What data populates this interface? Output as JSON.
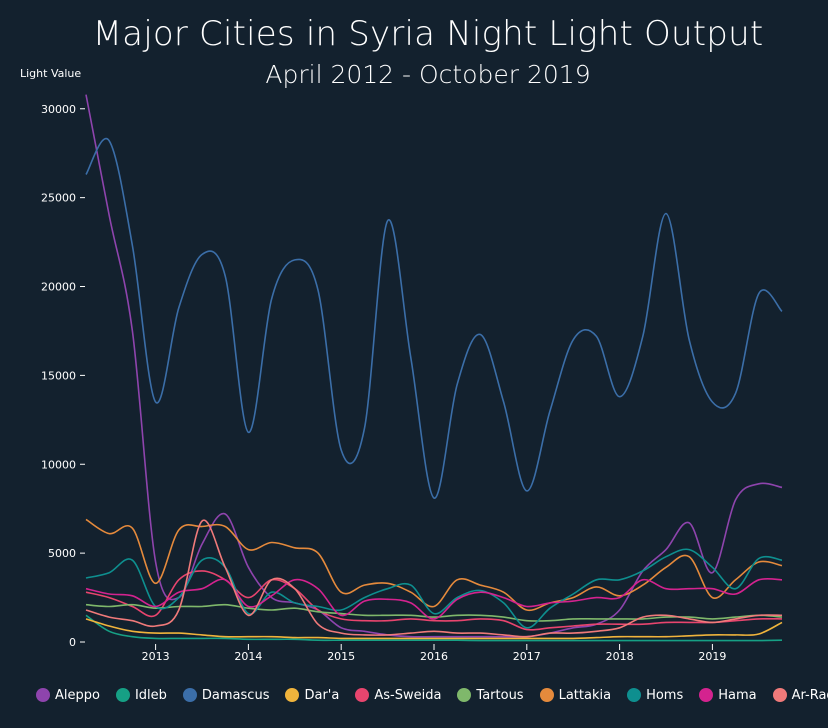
{
  "chart_data": {
    "type": "line",
    "title": "Major Cities in Syria Night Light Output",
    "subtitle": "April 2012 - October 2019",
    "ylabel": "Light Value",
    "xlabel": "",
    "ylim": [
      0,
      31000
    ],
    "xlim": [
      "2012-04",
      "2019-10"
    ],
    "yticks": [
      0,
      5000,
      10000,
      15000,
      20000,
      25000,
      30000
    ],
    "yticklabels": [
      "0",
      "5000",
      "10000",
      "15000",
      "20000",
      "25000",
      "30000"
    ],
    "xticks": [
      "2013-01",
      "2014-01",
      "2015-01",
      "2016-01",
      "2017-01",
      "2018-01",
      "2019-01"
    ],
    "xticklabels": [
      "2013",
      "2014",
      "2015",
      "2016",
      "2017",
      "2018",
      "2019"
    ],
    "legend_position": "bottom",
    "grid": false,
    "x": [
      "2012-04",
      "2012-07",
      "2012-10",
      "2013-01",
      "2013-04",
      "2013-07",
      "2013-10",
      "2014-01",
      "2014-04",
      "2014-07",
      "2014-10",
      "2015-01",
      "2015-04",
      "2015-07",
      "2015-10",
      "2016-01",
      "2016-04",
      "2016-07",
      "2016-10",
      "2017-01",
      "2017-04",
      "2017-07",
      "2017-10",
      "2018-01",
      "2018-04",
      "2018-07",
      "2018-10",
      "2019-01",
      "2019-04",
      "2019-07",
      "2019-10"
    ],
    "series": [
      {
        "name": "Aleppo",
        "color": "#8e44ad",
        "values": [
          30800,
          24000,
          17500,
          4500,
          2500,
          5500,
          7200,
          4200,
          2500,
          2200,
          1800,
          800,
          600,
          400,
          300,
          300,
          300,
          300,
          300,
          300,
          500,
          800,
          1000,
          1800,
          4000,
          5200,
          6700,
          3900,
          8000,
          8900,
          8700
        ]
      },
      {
        "name": "Idleb",
        "color": "#16a085",
        "values": [
          1500,
          600,
          300,
          200,
          200,
          200,
          200,
          150,
          150,
          150,
          100,
          100,
          100,
          100,
          100,
          100,
          100,
          80,
          80,
          80,
          80,
          80,
          80,
          80,
          80,
          80,
          80,
          80,
          80,
          80,
          100
        ]
      },
      {
        "name": "Damascus",
        "color": "#3b6ea8",
        "values": [
          26300,
          28200,
          22300,
          13500,
          18800,
          21800,
          20600,
          11800,
          19300,
          21500,
          19800,
          10800,
          12000,
          23700,
          16000,
          8100,
          14500,
          17300,
          13500,
          8500,
          13000,
          17000,
          17200,
          13800,
          17200,
          24100,
          17000,
          13500,
          14000,
          19600,
          18600
        ]
      },
      {
        "name": "Dar'a",
        "color": "#f0b43c",
        "values": [
          1300,
          900,
          600,
          500,
          500,
          400,
          300,
          300,
          300,
          250,
          250,
          200,
          200,
          200,
          200,
          200,
          200,
          200,
          200,
          200,
          200,
          200,
          250,
          300,
          300,
          300,
          350,
          400,
          400,
          450,
          1100
        ]
      },
      {
        "name": "As-Sweida",
        "color": "#e8456e",
        "values": [
          2800,
          2500,
          2000,
          1500,
          3500,
          4000,
          3500,
          2500,
          3500,
          3000,
          1800,
          1300,
          1200,
          1200,
          1300,
          1200,
          1200,
          1300,
          1200,
          700,
          800,
          900,
          1000,
          1000,
          1000,
          1100,
          1100,
          1100,
          1200,
          1300,
          1300
        ]
      },
      {
        "name": "Tartous",
        "color": "#7fb86b",
        "values": [
          2100,
          2000,
          2100,
          1900,
          2000,
          2000,
          2100,
          1900,
          1800,
          1900,
          1700,
          1600,
          1500,
          1500,
          1500,
          1400,
          1500,
          1500,
          1400,
          1200,
          1200,
          1300,
          1300,
          1300,
          1300,
          1400,
          1400,
          1300,
          1400,
          1500,
          1400
        ]
      },
      {
        "name": "Lattakia",
        "color": "#e58a3c",
        "values": [
          6900,
          6100,
          6400,
          3300,
          6300,
          6500,
          6500,
          5200,
          5600,
          5300,
          5000,
          2800,
          3200,
          3300,
          2800,
          2000,
          3500,
          3200,
          2800,
          1800,
          2200,
          2500,
          3100,
          2600,
          3200,
          4200,
          4800,
          2500,
          3500,
          4500,
          4300
        ]
      },
      {
        "name": "Homs",
        "color": "#0e8f8f",
        "values": [
          3600,
          3900,
          4600,
          2000,
          2500,
          4600,
          4200,
          1600,
          2800,
          2200,
          2000,
          1800,
          2500,
          3000,
          3200,
          1600,
          2500,
          2900,
          2200,
          800,
          1900,
          2700,
          3500,
          3500,
          4000,
          4800,
          5200,
          4200,
          3000,
          4700,
          4600
        ]
      },
      {
        "name": "Hama",
        "color": "#d4238f",
        "values": [
          3000,
          2700,
          2600,
          2000,
          2800,
          3000,
          3500,
          2000,
          2600,
          3500,
          3000,
          1500,
          2300,
          2400,
          2200,
          1300,
          2400,
          2800,
          2500,
          2000,
          2200,
          2300,
          2500,
          2500,
          3500,
          3000,
          3000,
          3000,
          2700,
          3500,
          3500
        ]
      },
      {
        "name": "Ar-Raqqa",
        "color": "#f07a7a",
        "values": [
          1800,
          1400,
          1200,
          900,
          1800,
          6800,
          4200,
          1500,
          3500,
          3000,
          1000,
          500,
          400,
          400,
          500,
          600,
          500,
          500,
          400,
          300,
          500,
          500,
          600,
          800,
          1400,
          1500,
          1300,
          1100,
          1300,
          1500,
          1500
        ]
      }
    ]
  }
}
